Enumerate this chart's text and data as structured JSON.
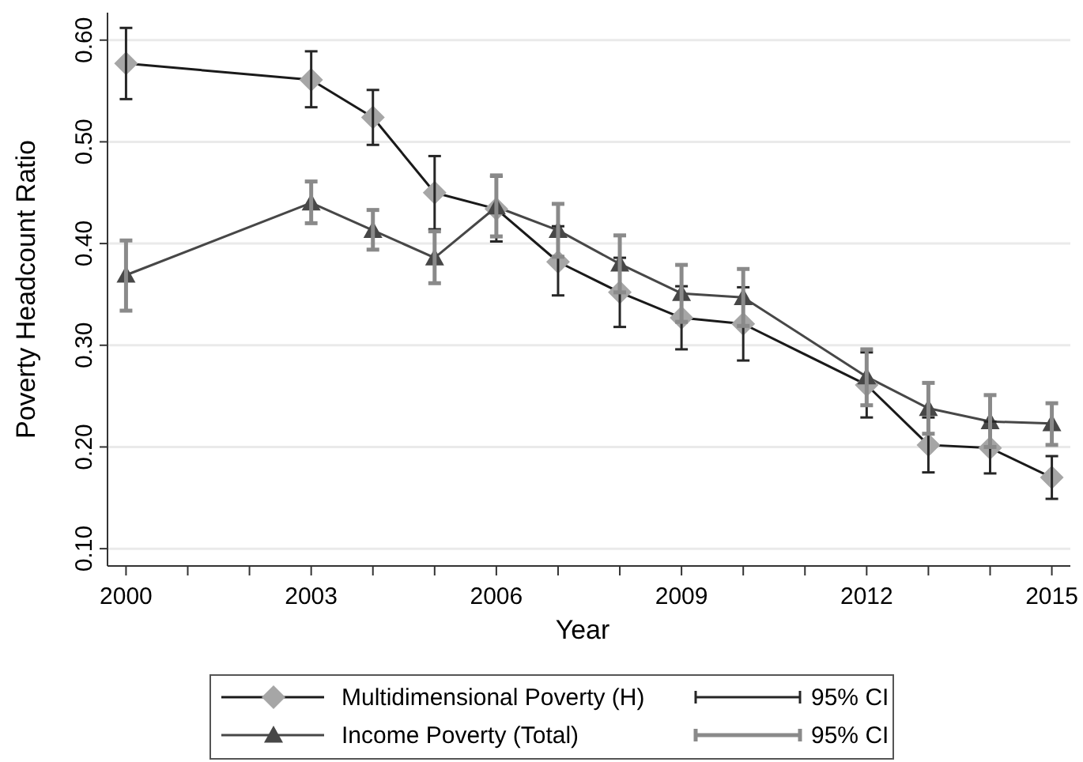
{
  "chart_data": {
    "type": "line",
    "xlabel": "Year",
    "ylabel": "Poverty Headcount Ratio",
    "x": [
      2000,
      2003,
      2004,
      2005,
      2006,
      2007,
      2008,
      2009,
      2010,
      2012,
      2013,
      2014,
      2015
    ],
    "series": [
      {
        "name": "Multidimensional Poverty (H)",
        "color": "#a6a6a6",
        "marker": "diamond",
        "values": [
          0.577,
          0.561,
          0.524,
          0.45,
          0.434,
          0.382,
          0.352,
          0.327,
          0.321,
          0.261,
          0.202,
          0.199,
          0.17
        ],
        "errors": [
          [
            0.542,
            0.612
          ],
          [
            0.534,
            0.589
          ],
          [
            0.497,
            0.551
          ],
          [
            0.414,
            0.486
          ],
          [
            0.402,
            0.466
          ],
          [
            0.349,
            0.417
          ],
          [
            0.318,
            0.386
          ],
          [
            0.296,
            0.358
          ],
          [
            0.285,
            0.357
          ],
          [
            0.229,
            0.293
          ],
          [
            0.175,
            0.229
          ],
          [
            0.174,
            0.225
          ],
          [
            0.149,
            0.191
          ]
        ]
      },
      {
        "name": "Income Poverty (Total)",
        "color": "#474747",
        "marker": "triangle",
        "values": [
          0.369,
          0.44,
          0.413,
          0.386,
          0.436,
          0.413,
          0.38,
          0.351,
          0.347,
          0.269,
          0.238,
          0.225,
          0.223
        ],
        "errors": [
          [
            0.334,
            0.403
          ],
          [
            0.42,
            0.461
          ],
          [
            0.394,
            0.433
          ],
          [
            0.361,
            0.412
          ],
          [
            0.407,
            0.467
          ],
          [
            0.387,
            0.439
          ],
          [
            0.352,
            0.408
          ],
          [
            0.323,
            0.379
          ],
          [
            0.319,
            0.375
          ],
          [
            0.241,
            0.296
          ],
          [
            0.213,
            0.263
          ],
          [
            0.2,
            0.251
          ],
          [
            0.202,
            0.243
          ]
        ]
      }
    ],
    "annotations": [
      "95% CI",
      "95% CI"
    ],
    "xlim": [
      1999.7,
      2015.3
    ],
    "ylim": [
      0.083,
      0.627
    ],
    "xticks": [
      2000,
      {
        "value": 2001,
        "label": null
      },
      {
        "value": 2002,
        "label": null
      },
      2003,
      {
        "value": 2004,
        "label": null
      },
      {
        "value": 2005,
        "label": null
      },
      2006,
      {
        "value": 2007,
        "label": null
      },
      {
        "value": 2008,
        "label": null
      },
      2009,
      {
        "value": 2010,
        "label": null
      },
      {
        "value": 2011,
        "label": null
      },
      2012,
      {
        "value": 2013,
        "label": null
      },
      {
        "value": 2014,
        "label": null
      },
      2015
    ],
    "yticks": [
      {
        "value": 0.1,
        "label": "0.10"
      },
      {
        "value": 0.2,
        "label": "0.20"
      },
      {
        "value": 0.3,
        "label": "0.30"
      },
      {
        "value": 0.4,
        "label": "0.40"
      },
      {
        "value": 0.5,
        "label": "0.50"
      },
      {
        "value": 0.6,
        "label": "0.60"
      }
    ],
    "grid": "y",
    "legend": "bottom"
  }
}
